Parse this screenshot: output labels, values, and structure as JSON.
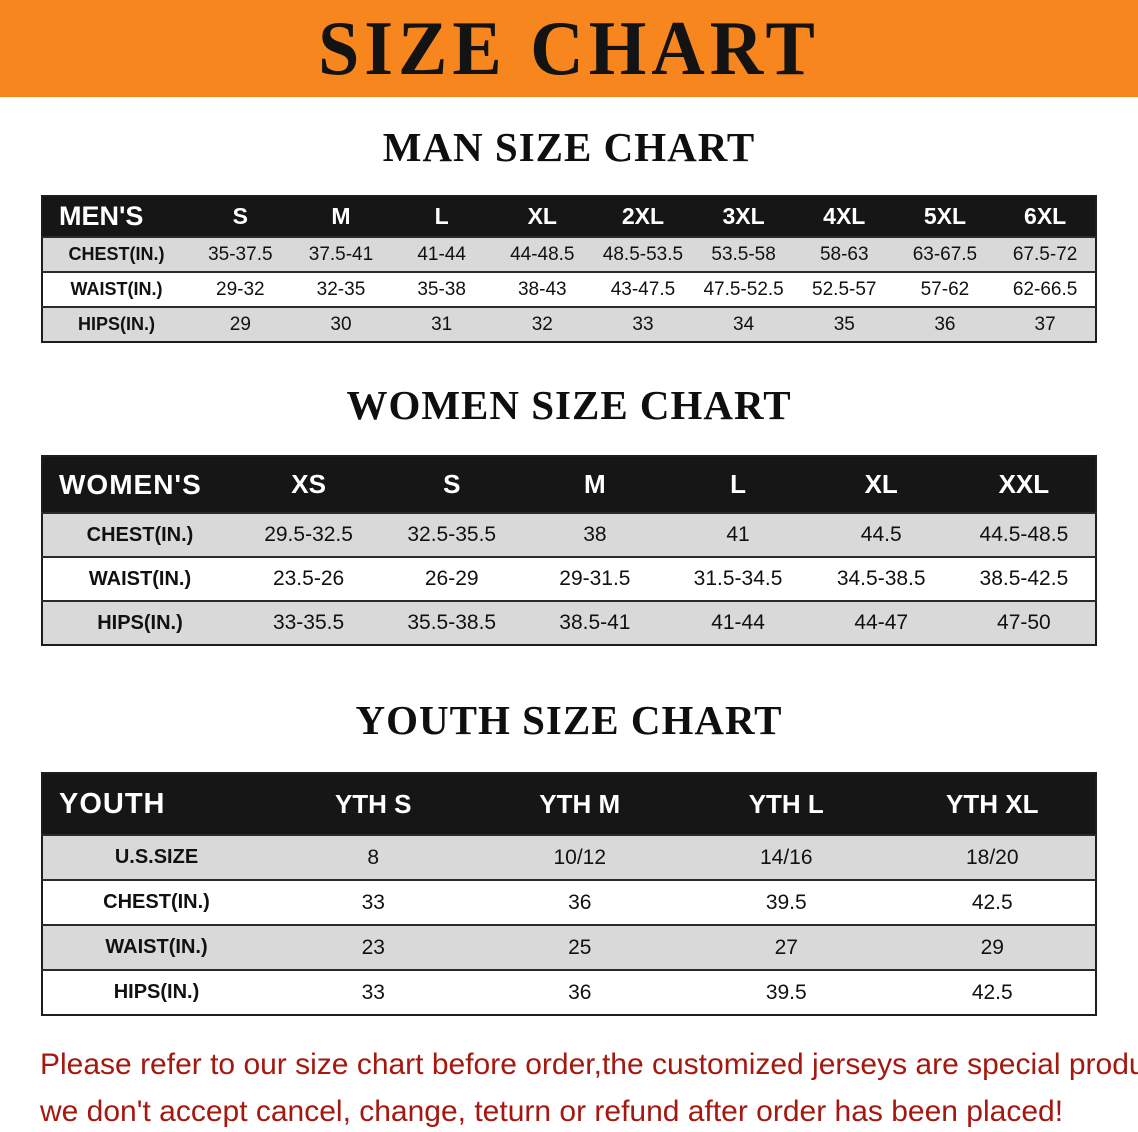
{
  "colors": {
    "banner_bg": "#f6861d",
    "header_bg": "#161616",
    "row_gray": "#d9d9d9",
    "footer_red": "#a4180f"
  },
  "banner": {
    "title": "SIZE CHART"
  },
  "sections": [
    {
      "heading": "MAN SIZE CHART",
      "table": {
        "header": [
          "MEN'S",
          "S",
          "M",
          "L",
          "XL",
          "2XL",
          "3XL",
          "4XL",
          "5XL",
          "6XL"
        ],
        "rows": [
          [
            "CHEST(IN.)",
            "35-37.5",
            "37.5-41",
            "41-44",
            "44-48.5",
            "48.5-53.5",
            "53.5-58",
            "58-63",
            "63-67.5",
            "67.5-72"
          ],
          [
            "WAIST(IN.)",
            "29-32",
            "32-35",
            "35-38",
            "38-43",
            "43-47.5",
            "47.5-52.5",
            "52.5-57",
            "57-62",
            "62-66.5"
          ],
          [
            "HIPS(IN.)",
            "29",
            "30",
            "31",
            "32",
            "33",
            "34",
            "35",
            "36",
            "37"
          ]
        ]
      }
    },
    {
      "heading": "WOMEN SIZE CHART",
      "table": {
        "header": [
          "WOMEN'S",
          "XS",
          "S",
          "M",
          "L",
          "XL",
          "XXL"
        ],
        "rows": [
          [
            "CHEST(IN.)",
            "29.5-32.5",
            "32.5-35.5",
            "38",
            "41",
            "44.5",
            "44.5-48.5"
          ],
          [
            "WAIST(IN.)",
            "23.5-26",
            "26-29",
            "29-31.5",
            "31.5-34.5",
            "34.5-38.5",
            "38.5-42.5"
          ],
          [
            "HIPS(IN.)",
            "33-35.5",
            "35.5-38.5",
            "38.5-41",
            "41-44",
            "44-47",
            "47-50"
          ]
        ]
      }
    },
    {
      "heading": "YOUTH SIZE CHART",
      "table": {
        "header": [
          "YOUTH",
          "YTH S",
          "YTH M",
          "YTH L",
          "YTH XL"
        ],
        "rows": [
          [
            "U.S.SIZE",
            "8",
            "10/12",
            "14/16",
            "18/20"
          ],
          [
            "CHEST(IN.)",
            "33",
            "36",
            "39.5",
            "42.5"
          ],
          [
            "WAIST(IN.)",
            "23",
            "25",
            "27",
            "29"
          ],
          [
            "HIPS(IN.)",
            "33",
            "36",
            "39.5",
            "42.5"
          ]
        ]
      }
    }
  ],
  "footer": {
    "line1": "Please refer to our size chart before order,the customized jerseys are special products,",
    "line2": "we don't accept cancel, change, teturn or refund after order has been placed!"
  }
}
